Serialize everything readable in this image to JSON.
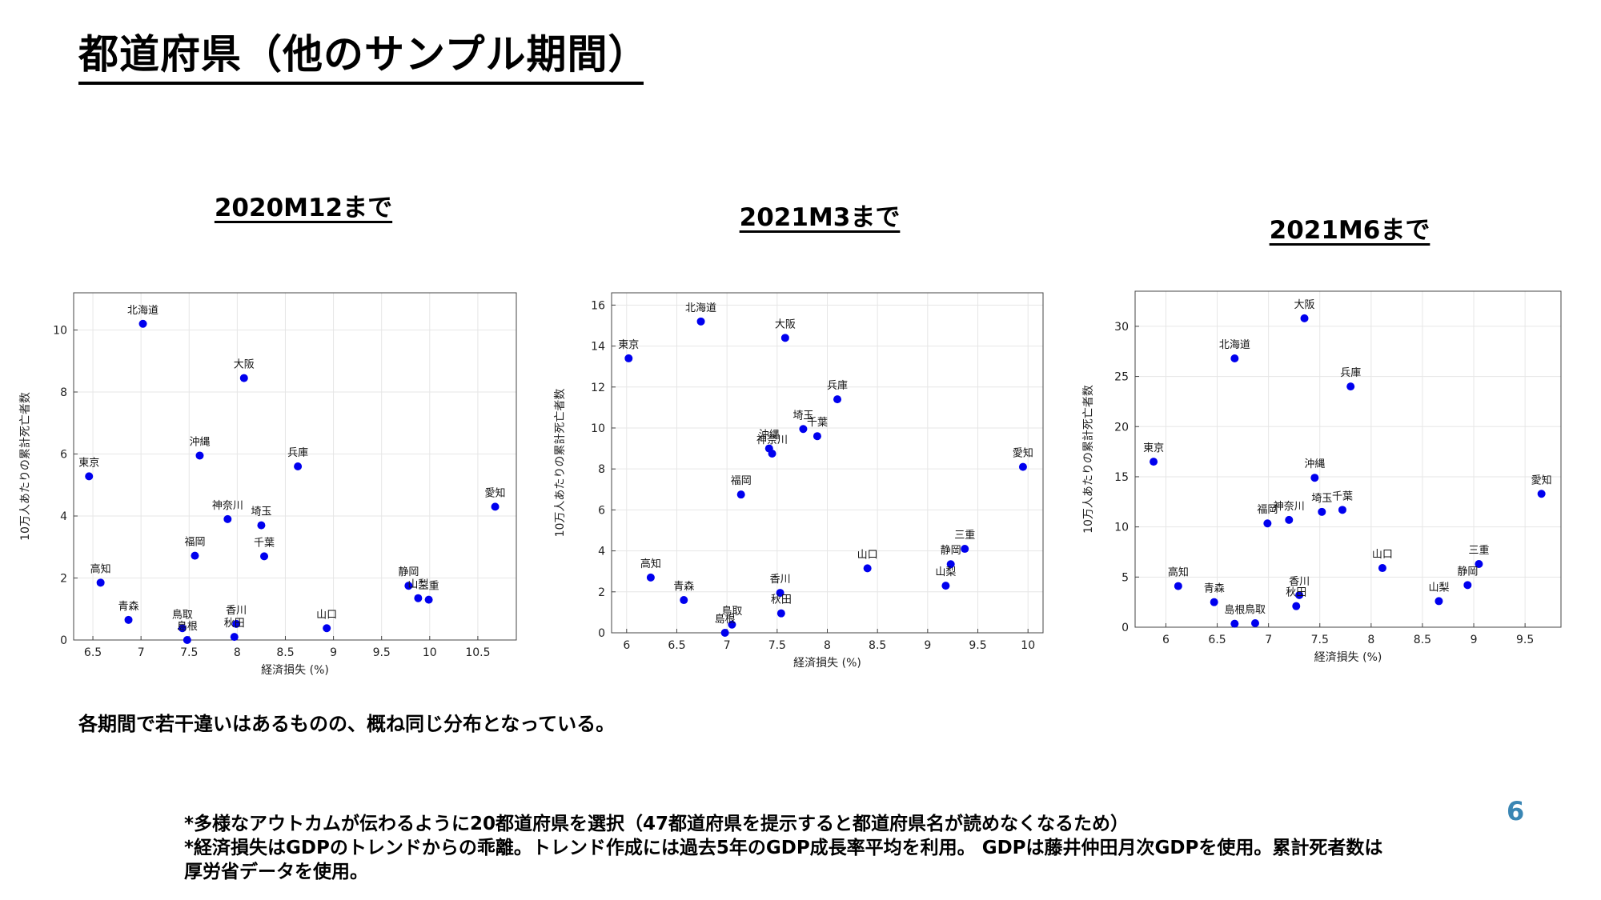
{
  "slide": {
    "title": "都道府県（他のサンプル期間）",
    "summary": "各期間で若干違いはあるものの、概ね同じ分布となっている。",
    "notes": [
      "*多様なアウトカムが伝わるように20都道府県を選択（47都道府県を提示すると都道府県名が読めなくなるため）",
      "*経済損失はGDPのトレンドからの乖離。トレンド作成には過去5年のGDP成長率平均を利用。 GDPは藤井仲田月次GDPを使用。累計死者数は",
      "厚労省データを使用。"
    ],
    "page_number": "6"
  },
  "colors": {
    "marker": "#0000ee",
    "grid": "#e6e6e6",
    "axis": "#444444",
    "accent": "#3a86b4"
  },
  "chart_data": [
    {
      "type": "scatter",
      "title": "2020M12まで",
      "xlabel": "経済損失 (%)",
      "ylabel": "10万人あたりの累計死亡者数",
      "xlim": [
        6.3,
        10.9
      ],
      "ylim": [
        0,
        11.2
      ],
      "xticks": [
        6.5,
        7,
        7.5,
        8,
        8.5,
        9,
        9.5,
        10,
        10.5
      ],
      "yticks": [
        0,
        2,
        4,
        6,
        8,
        10
      ],
      "grid": true,
      "points": [
        {
          "label": "北海道",
          "x": 7.02,
          "y": 10.2
        },
        {
          "label": "大阪",
          "x": 8.07,
          "y": 8.45
        },
        {
          "label": "沖縄",
          "x": 7.61,
          "y": 5.95
        },
        {
          "label": "東京",
          "x": 6.46,
          "y": 5.28
        },
        {
          "label": "兵庫",
          "x": 8.63,
          "y": 5.6
        },
        {
          "label": "愛知",
          "x": 10.68,
          "y": 4.3
        },
        {
          "label": "神奈川",
          "x": 7.9,
          "y": 3.9
        },
        {
          "label": "埼玉",
          "x": 8.25,
          "y": 3.7
        },
        {
          "label": "福岡",
          "x": 7.56,
          "y": 2.72
        },
        {
          "label": "千葉",
          "x": 8.28,
          "y": 2.7
        },
        {
          "label": "高知",
          "x": 6.58,
          "y": 1.85
        },
        {
          "label": "静岡",
          "x": 9.78,
          "y": 1.75
        },
        {
          "label": "山梨",
          "x": 9.88,
          "y": 1.35
        },
        {
          "label": "三重",
          "x": 9.99,
          "y": 1.3
        },
        {
          "label": "青森",
          "x": 6.87,
          "y": 0.65
        },
        {
          "label": "香川",
          "x": 7.99,
          "y": 0.52
        },
        {
          "label": "鳥取",
          "x": 7.43,
          "y": 0.38
        },
        {
          "label": "山口",
          "x": 8.93,
          "y": 0.38
        },
        {
          "label": "秋田",
          "x": 7.97,
          "y": 0.1
        },
        {
          "label": "島根",
          "x": 7.48,
          "y": 0.0
        }
      ]
    },
    {
      "type": "scatter",
      "title": "2021M3まで",
      "xlabel": "経済損失 (%)",
      "ylabel": "10万人あたりの累計死亡者数",
      "xlim": [
        5.85,
        10.15
      ],
      "ylim": [
        0,
        16.6
      ],
      "xticks": [
        6,
        6.5,
        7,
        7.5,
        8,
        8.5,
        9,
        9.5,
        10
      ],
      "yticks": [
        0,
        2,
        4,
        6,
        8,
        10,
        12,
        14,
        16
      ],
      "grid": true,
      "points": [
        {
          "label": "北海道",
          "x": 6.74,
          "y": 15.2
        },
        {
          "label": "大阪",
          "x": 7.58,
          "y": 14.4
        },
        {
          "label": "東京",
          "x": 6.02,
          "y": 13.4
        },
        {
          "label": "兵庫",
          "x": 8.1,
          "y": 11.4
        },
        {
          "label": "埼玉",
          "x": 7.76,
          "y": 9.95
        },
        {
          "label": "千葉",
          "x": 7.9,
          "y": 9.6
        },
        {
          "label": "沖縄",
          "x": 7.42,
          "y": 9.0
        },
        {
          "label": "神奈川",
          "x": 7.45,
          "y": 8.75
        },
        {
          "label": "愛知",
          "x": 9.95,
          "y": 8.1
        },
        {
          "label": "福岡",
          "x": 7.14,
          "y": 6.75
        },
        {
          "label": "三重",
          "x": 9.37,
          "y": 4.1
        },
        {
          "label": "静岡",
          "x": 9.23,
          "y": 3.35
        },
        {
          "label": "山口",
          "x": 8.4,
          "y": 3.15
        },
        {
          "label": "高知",
          "x": 6.24,
          "y": 2.7
        },
        {
          "label": "山梨",
          "x": 9.18,
          "y": 2.3
        },
        {
          "label": "香川",
          "x": 7.53,
          "y": 1.95
        },
        {
          "label": "青森",
          "x": 6.57,
          "y": 1.6
        },
        {
          "label": "秋田",
          "x": 7.54,
          "y": 0.95
        },
        {
          "label": "鳥取",
          "x": 7.05,
          "y": 0.4
        },
        {
          "label": "島根",
          "x": 6.98,
          "y": 0.0
        }
      ]
    },
    {
      "type": "scatter",
      "title": "2021M6まで",
      "xlabel": "経済損失 (%)",
      "ylabel": "10万人あたりの累計死亡者数",
      "xlim": [
        5.7,
        9.85
      ],
      "ylim": [
        0,
        33.5
      ],
      "xticks": [
        6,
        6.5,
        7,
        7.5,
        8,
        8.5,
        9,
        9.5
      ],
      "yticks": [
        0,
        5,
        10,
        15,
        20,
        25,
        30
      ],
      "grid": true,
      "points": [
        {
          "label": "大阪",
          "x": 7.35,
          "y": 30.8
        },
        {
          "label": "北海道",
          "x": 6.67,
          "y": 26.8
        },
        {
          "label": "兵庫",
          "x": 7.8,
          "y": 24.0
        },
        {
          "label": "東京",
          "x": 5.88,
          "y": 16.5
        },
        {
          "label": "沖縄",
          "x": 7.45,
          "y": 14.9
        },
        {
          "label": "愛知",
          "x": 9.66,
          "y": 13.3
        },
        {
          "label": "千葉",
          "x": 7.72,
          "y": 11.7
        },
        {
          "label": "埼玉",
          "x": 7.52,
          "y": 11.5
        },
        {
          "label": "神奈川",
          "x": 7.2,
          "y": 10.7
        },
        {
          "label": "福岡",
          "x": 6.99,
          "y": 10.35
        },
        {
          "label": "三重",
          "x": 9.05,
          "y": 6.3
        },
        {
          "label": "山口",
          "x": 8.11,
          "y": 5.9
        },
        {
          "label": "静岡",
          "x": 8.94,
          "y": 4.2
        },
        {
          "label": "高知",
          "x": 6.12,
          "y": 4.1
        },
        {
          "label": "香川",
          "x": 7.3,
          "y": 3.2
        },
        {
          "label": "山梨",
          "x": 8.66,
          "y": 2.6
        },
        {
          "label": "青森",
          "x": 6.47,
          "y": 2.5
        },
        {
          "label": "秋田",
          "x": 7.27,
          "y": 2.1
        },
        {
          "label": "鳥取",
          "x": 6.87,
          "y": 0.4
        },
        {
          "label": "島根",
          "x": 6.67,
          "y": 0.35
        }
      ]
    }
  ]
}
